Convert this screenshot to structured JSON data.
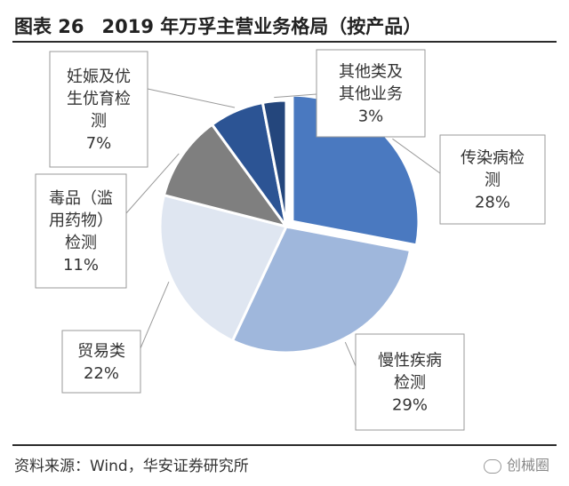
{
  "header": {
    "fig_label": "图表 26",
    "title": "2019 年万孚主营业务格局（按产品）"
  },
  "footer": {
    "source": "资料来源：Wind，华安证券研究所",
    "watermark": "创械圈"
  },
  "chart_data": {
    "type": "pie",
    "title": "2019 年万孚主营业务格局（按产品）",
    "slices": [
      {
        "label": "传染病检测",
        "value": 28,
        "value_label": "28%",
        "color": "#4a79c0"
      },
      {
        "label": "慢性疾病检测",
        "value": 29,
        "value_label": "29%",
        "color": "#9fb7dc"
      },
      {
        "label": "贸易类",
        "value": 22,
        "value_label": "22%",
        "color": "#dfe6f1"
      },
      {
        "label": "毒品（滥用药物）检测",
        "value": 11,
        "value_label": "11%",
        "color": "#7f7f7f"
      },
      {
        "label": "妊娠及优生优育检测",
        "value": 7,
        "value_label": "7%",
        "color": "#2c5494"
      },
      {
        "label": "其他类及其他业务",
        "value": 3,
        "value_label": "3%",
        "color": "#24467c"
      }
    ],
    "label_lines": [
      [
        "传染病检",
        "测",
        "28%"
      ],
      [
        "慢性疾病",
        "检测",
        "29%"
      ],
      [
        "贸易类",
        "22%"
      ],
      [
        "毒品（滥",
        "用药物）",
        "检测",
        "11%"
      ],
      [
        "妊娠及优",
        "生优育检",
        "测",
        "7%"
      ],
      [
        "其他类及",
        "其他业务",
        "3%"
      ]
    ],
    "exploded_slice": "传染病检测",
    "legend": "none",
    "grid": false
  }
}
